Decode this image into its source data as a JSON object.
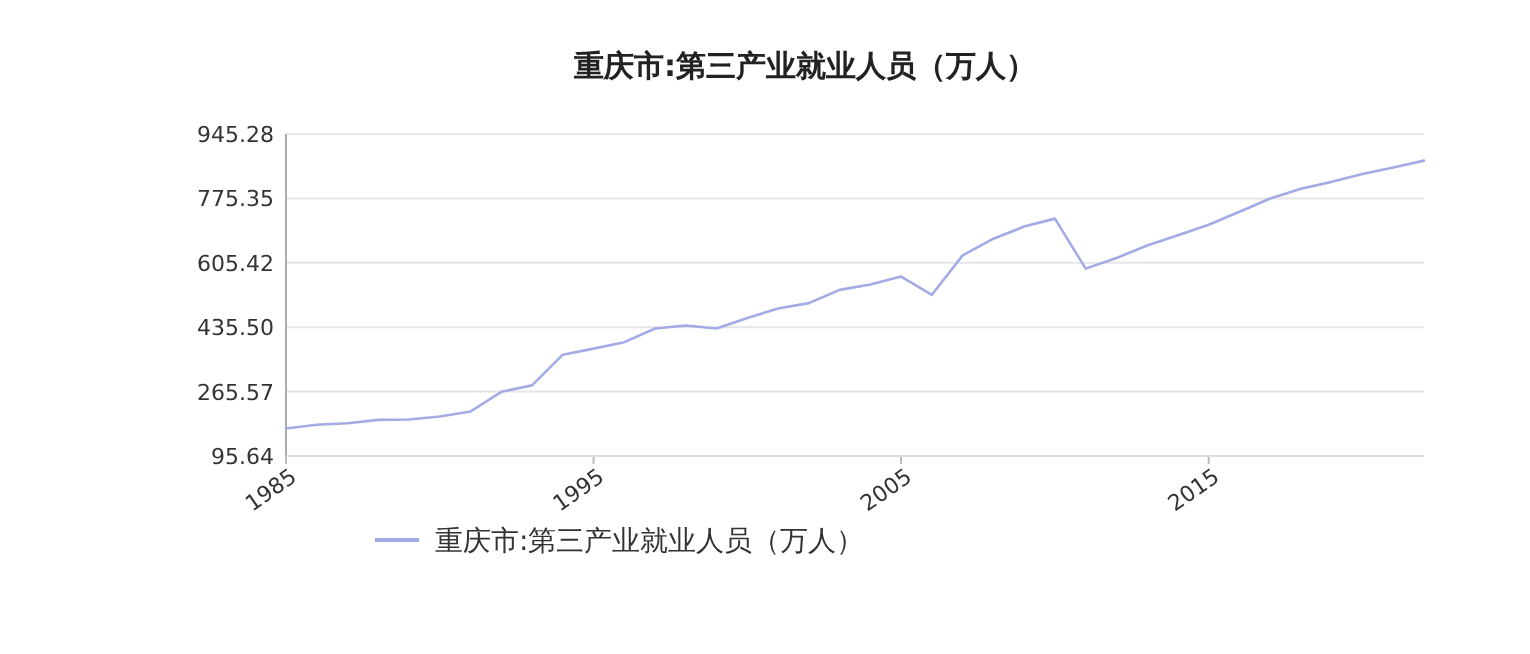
{
  "chart_data": {
    "type": "line",
    "title": "重庆市:第三产业就业人员（万人）",
    "x": [
      1985,
      1986,
      1987,
      1988,
      1989,
      1990,
      1991,
      1992,
      1993,
      1994,
      1995,
      1996,
      1997,
      1998,
      1999,
      2000,
      2001,
      2002,
      2003,
      2004,
      2005,
      2006,
      2007,
      2008,
      2009,
      2010,
      2011,
      2012,
      2013,
      2014,
      2015,
      2016,
      2017,
      2018,
      2019,
      2020,
      2021,
      2022
    ],
    "series": [
      {
        "name": "重庆市:第三产业就业人员（万人）",
        "color": "#a3abe6",
        "values": [
          168,
          178,
          182,
          191,
          192,
          200,
          213,
          265,
          282,
          363,
          379,
          396,
          432,
          440,
          432,
          460,
          485,
          499,
          534,
          548,
          569,
          521,
          625,
          669,
          701,
          722,
          590,
          618,
          651,
          678,
          706,
          740,
          775,
          801,
          819,
          840,
          857,
          875
        ]
      }
    ],
    "xlim": [
      1985,
      2022
    ],
    "xticks": [
      1985,
      1995,
      2005,
      2015
    ],
    "ylim": [
      95.64,
      945.28
    ],
    "yticks": [
      95.64,
      265.57,
      {
        "value": 435.5,
        "label": "435.50"
      },
      605.42,
      775.35,
      945.28
    ],
    "grid": "y",
    "legend": "bottom",
    "marker": "none",
    "line_style": "solid"
  }
}
